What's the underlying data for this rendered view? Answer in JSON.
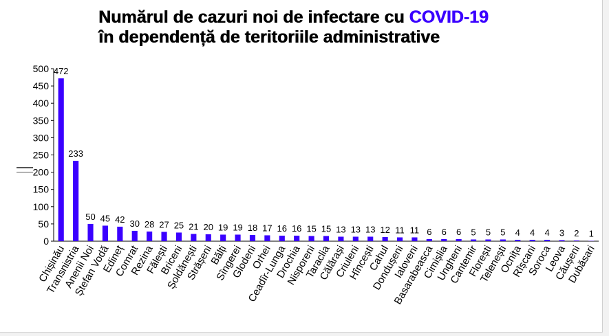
{
  "title": {
    "part1": "Numărul de cazuri noi de infectare cu ",
    "accent": "COVID-19",
    "part2": "în dependență de teritoriile administrative"
  },
  "chart_data": {
    "type": "bar",
    "title": "Numărul de cazuri noi de infectare cu COVID-19 în dependență de teritoriile administrative",
    "xlabel": "",
    "ylabel": "",
    "ylim": [
      0,
      500
    ],
    "yticks": [
      0,
      50,
      100,
      150,
      200,
      250,
      300,
      350,
      400,
      450,
      500
    ],
    "grid": false,
    "bar_color": "#3a00ff",
    "categories": [
      "Chișinău",
      "Transnistria",
      "Anenii Noi",
      "Ștefan Vodă",
      "Edineț",
      "Comrat",
      "Rezina",
      "Fălești",
      "Briceni",
      "Șoldănești",
      "Strășeni",
      "Bălți",
      "Sîngerei",
      "Glodeni",
      "Orhei",
      "Ceadîr-Lunga",
      "Drochia",
      "Nisporeni",
      "Taraclia",
      "Călărași",
      "Criuleni",
      "Hîncești",
      "Cahul",
      "Dondușeni",
      "Ialoveni",
      "Basarabeasca",
      "Cimișlia",
      "Ungheni",
      "Cantemir",
      "Florești",
      "Telenești",
      "Ocnița",
      "Rîșcani",
      "Soroca",
      "Leova",
      "Căușeni",
      "Dubăsari"
    ],
    "values": [
      472,
      233,
      50,
      45,
      42,
      30,
      28,
      27,
      25,
      21,
      20,
      19,
      19,
      18,
      17,
      16,
      16,
      15,
      15,
      13,
      13,
      13,
      12,
      11,
      11,
      6,
      6,
      6,
      5,
      5,
      5,
      4,
      4,
      4,
      3,
      2,
      1
    ]
  }
}
